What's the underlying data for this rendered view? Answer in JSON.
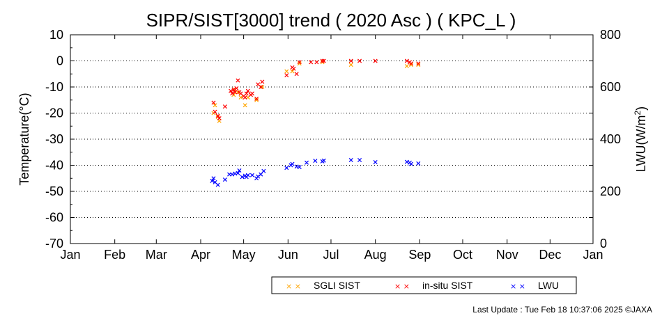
{
  "chart_data": {
    "type": "scatter",
    "title": "SIPR/SIST[3000] trend ( 2020 Asc ) ( KPC_L )",
    "ylabel_left": "Temperature(°C)",
    "ylabel_right": "LWU(W/m²)",
    "ylim_left": [
      -70,
      10
    ],
    "ylim_right": [
      0,
      800
    ],
    "yticks_left": [
      "10",
      "0",
      "-10",
      "-20",
      "-30",
      "-40",
      "-50",
      "-60",
      "-70"
    ],
    "yticks_right": [
      "800",
      "600",
      "400",
      "200",
      "0"
    ],
    "xlim_day": [
      0,
      365
    ],
    "xtick_labels": [
      "Jan",
      "Feb",
      "Mar",
      "Apr",
      "May",
      "Jun",
      "Jul",
      "Aug",
      "Sep",
      "Oct",
      "Nov",
      "Dec",
      "Jan"
    ],
    "grid": "horizontal dotted",
    "legend_position": "bottom-right",
    "series": [
      {
        "name": "SGLI SIST",
        "color": "#ffa500",
        "axis": "left",
        "x": [
          "2020-04-10",
          "2020-04-11",
          "2020-04-13",
          "2020-04-14",
          "2020-04-24",
          "2020-04-25",
          "2020-04-27",
          "2020-04-29",
          "2020-05-02",
          "2020-05-04",
          "2020-05-06",
          "2020-05-10",
          "2020-05-14",
          "2020-05-31",
          "2020-06-04",
          "2020-06-09",
          "2020-06-25",
          "2020-07-15",
          "2020-08-23",
          "2020-08-26",
          "2020-08-31"
        ],
        "y": [
          -20,
          -17,
          -21.5,
          -23,
          -13,
          -11,
          -12,
          -14,
          -17,
          -14,
          -13,
          -15,
          -10,
          -4,
          -4,
          -1,
          -0.5,
          -1.5,
          -2,
          -1.5,
          -1.5
        ]
      },
      {
        "name": "in-situ SIST",
        "color": "#ff0000",
        "axis": "left",
        "x": [
          "2020-04-10",
          "2020-04-11",
          "2020-04-13",
          "2020-04-14",
          "2020-04-18",
          "2020-04-22",
          "2020-04-23",
          "2020-04-24",
          "2020-04-25",
          "2020-04-26",
          "2020-04-27",
          "2020-04-28",
          "2020-04-29",
          "2020-05-01",
          "2020-05-02",
          "2020-05-03",
          "2020-05-04",
          "2020-05-06",
          "2020-05-07",
          "2020-05-10",
          "2020-05-11",
          "2020-05-13",
          "2020-05-14",
          "2020-05-31",
          "2020-06-04",
          "2020-06-05",
          "2020-06-07",
          "2020-06-09",
          "2020-06-17",
          "2020-06-21",
          "2020-06-25",
          "2020-06-26",
          "2020-07-15",
          "2020-07-21",
          "2020-08-01",
          "2020-08-23",
          "2020-08-25",
          "2020-08-26",
          "2020-08-31"
        ],
        "y": [
          -16,
          -19.5,
          -21,
          -22,
          -17.5,
          -11.5,
          -12.5,
          -11,
          -12,
          -10.5,
          -7.5,
          -12,
          -12.5,
          -13.5,
          -14,
          -12.5,
          -11.5,
          -13,
          -12.5,
          -14.5,
          -9,
          -10,
          -8,
          -5.5,
          -2.5,
          -3,
          -5,
          -0.5,
          -0.5,
          -0.5,
          0,
          0,
          0,
          0,
          0,
          0,
          -0.5,
          -1,
          -1
        ]
      },
      {
        "name": "LWU",
        "color": "#0000ff",
        "axis": "right",
        "x": [
          "2020-04-09",
          "2020-04-10",
          "2020-04-11",
          "2020-04-13",
          "2020-04-18",
          "2020-04-21",
          "2020-04-23",
          "2020-04-25",
          "2020-04-27",
          "2020-04-28",
          "2020-04-30",
          "2020-05-02",
          "2020-05-03",
          "2020-05-04",
          "2020-05-07",
          "2020-05-10",
          "2020-05-11",
          "2020-05-13",
          "2020-05-15",
          "2020-05-31",
          "2020-06-03",
          "2020-06-04",
          "2020-06-07",
          "2020-06-09",
          "2020-06-14",
          "2020-06-20",
          "2020-06-25",
          "2020-06-26",
          "2020-07-15",
          "2020-07-21",
          "2020-08-01",
          "2020-08-23",
          "2020-08-25",
          "2020-08-26",
          "2020-08-31"
        ],
        "y": [
          240,
          250,
          235,
          225,
          245,
          265,
          265,
          268,
          270,
          280,
          255,
          260,
          255,
          262,
          262,
          250,
          257,
          265,
          278,
          290,
          300,
          305,
          295,
          293,
          310,
          317,
          315,
          318,
          320,
          320,
          312,
          313,
          310,
          305,
          307
        ]
      }
    ]
  },
  "legend": {
    "sgli_label": "SGLI SIST",
    "insitu_label": "in-situ SIST",
    "lwu_label": "LWU"
  },
  "footer": {
    "update": "Last Update : Tue Feb 18 10:37:06 2025",
    "copyright": "©JAXA"
  }
}
